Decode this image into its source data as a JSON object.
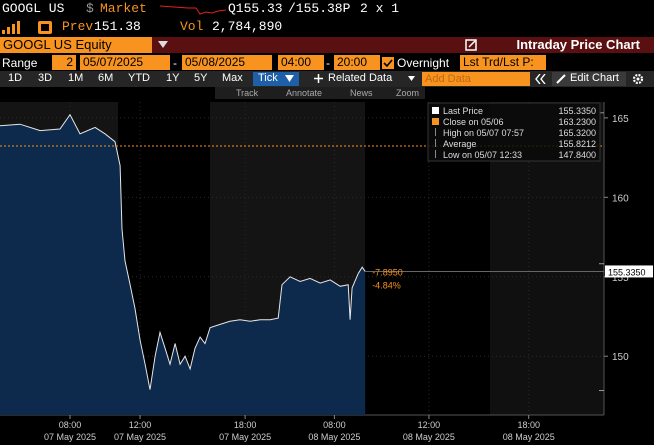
{
  "header": {
    "ticker": "GOOGL US",
    "currency": "$",
    "market": "Market",
    "quote": "Q155.33",
    "ask": "/155.38P",
    "size": "2 x 1",
    "prev_label": "Prev",
    "prev": "151.38",
    "vol_label": "Vol",
    "vol": "2,784,890"
  },
  "security": "GOOGL US Equity",
  "function_title": "Intraday Price Chart",
  "range": {
    "label": "Range",
    "count": "2",
    "start": "05/07/2025",
    "dash": "-",
    "end": "05/08/2025",
    "time_start": "04:00",
    "time_end": "20:00",
    "overnight": "Overnight",
    "mode": "Lst Trd/Lst P:"
  },
  "periods": [
    "1D",
    "3D",
    "1M",
    "6M",
    "YTD",
    "1Y",
    "5Y",
    "Max"
  ],
  "tick_button": "Tick",
  "related_data": "Related Data",
  "add_data": "Add Data",
  "edit_chart": "Edit Chart",
  "tools": [
    "Track",
    "Annotate",
    "News",
    "Zoom"
  ],
  "chart_data": {
    "type": "line",
    "series": [
      {
        "color": "#e6e6e6",
        "fill": "#0d2a4d",
        "values": [
          164.5,
          164.6,
          164.2,
          164.3,
          165.2,
          164.0,
          164.4,
          164.0,
          163.5,
          162.0,
          158.0,
          156.0,
          154.5,
          153.0,
          151.0,
          149.5,
          147.9,
          150.0,
          151.5,
          150.5,
          149.5,
          150.8,
          149.5,
          150.0,
          149.2,
          150.5,
          151.2,
          150.8,
          151.8,
          152.0,
          152.2,
          152.3,
          152.2,
          152.3,
          152.3,
          152.4,
          154.5,
          155.0,
          154.7,
          154.9,
          154.6,
          154.8,
          154.4,
          154.5,
          152.3,
          154.3,
          155.2,
          155.6,
          155.335
        ]
      }
    ],
    "x": [
      0,
      1.14,
      2.29,
      3.43,
      4,
      4.57,
      5.43,
      6,
      6.57,
      6.86,
      6.97,
      7.14,
      7.43,
      7.71,
      8,
      8.29,
      8.57,
      8.86,
      9.14,
      9.43,
      9.71,
      10,
      10.29,
      10.57,
      10.86,
      11.14,
      11.43,
      11.71,
      12,
      12.57,
      13.14,
      13.71,
      14.29,
      14.86,
      15.43,
      15.89,
      16.11,
      16.57,
      17.14,
      17.71,
      18.29,
      18.86,
      19.43,
      19.89,
      20,
      20.11,
      20.46,
      20.69,
      20.86
    ],
    "xlim": [
      0,
      34.5
    ],
    "xticks": [
      {
        "value": 4,
        "label": "08:00"
      },
      {
        "value": 8,
        "label": "12:00"
      },
      {
        "value": 14,
        "label": "18:00"
      },
      {
        "value": 19.1,
        "label": "08:00"
      },
      {
        "value": 24.5,
        "label": "12:00"
      },
      {
        "value": 30.2,
        "label": "18:00"
      }
    ],
    "xtick_dates": [
      "07 May 2025",
      "07 May 2025",
      "07 May 2025",
      "08 May 2025",
      "08 May 2025",
      "08 May 2025"
    ],
    "ylim": [
      146.3,
      166
    ],
    "yticks": [
      150,
      155,
      160,
      165
    ],
    "grid": true,
    "legend": [
      {
        "name": "Last Price",
        "value": 155.335,
        "label": "155.3350",
        "color": "#ffffff"
      },
      {
        "name": "Close on 05/06",
        "value": 163.23,
        "label": "163.2300",
        "color": "#f7931e"
      },
      {
        "name": "High on 05/07 07:57",
        "value": 165.32,
        "label": "165.3200"
      },
      {
        "name": "Average",
        "value": 155.8212,
        "label": "155.8212"
      },
      {
        "name": "Low on 05/07 12:33",
        "value": 147.84,
        "label": "147.8400"
      }
    ],
    "annotations": [
      "-7.8950",
      "-4.84%"
    ]
  }
}
